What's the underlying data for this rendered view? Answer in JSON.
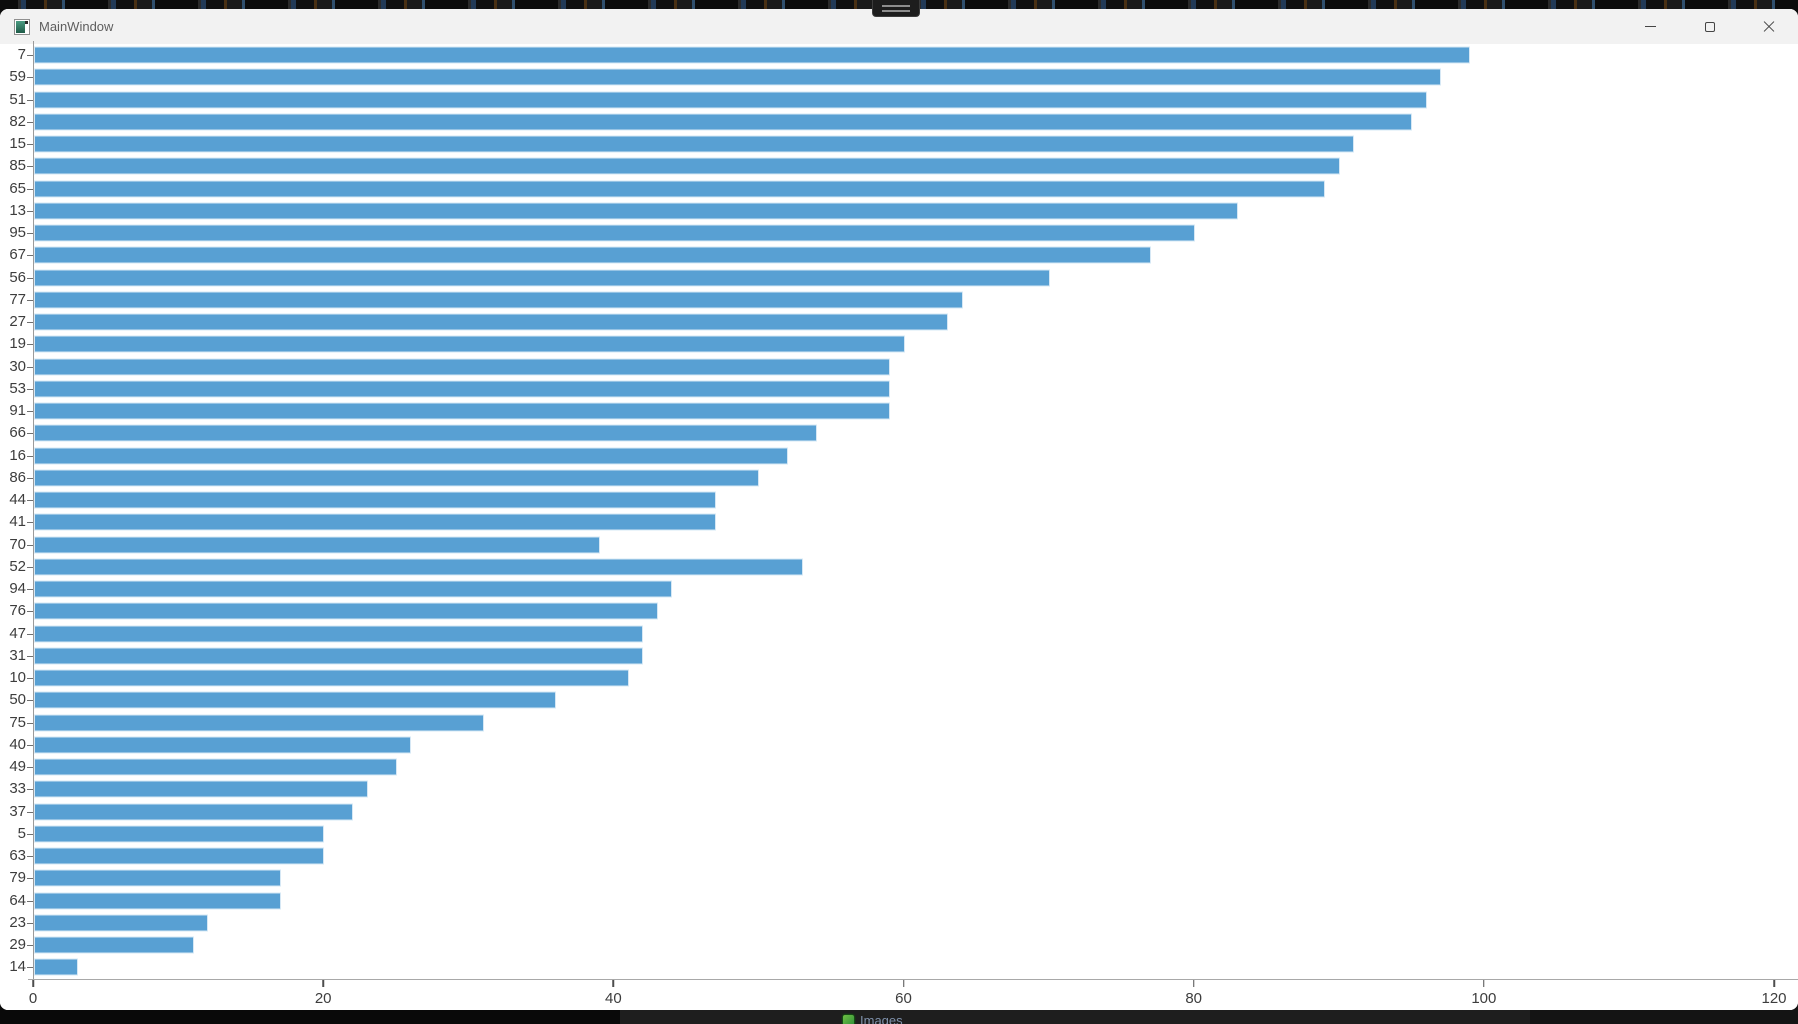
{
  "window": {
    "title": "MainWindow",
    "controls": {
      "minimize": "minimize",
      "maximize": "maximize",
      "close": "close"
    }
  },
  "taskbar_behind": {
    "images_label": "Images"
  },
  "colors": {
    "bar_fill": "#58a0d3",
    "bar_border": "#d6e8f5",
    "axis_line": "#9b9b9b",
    "tick_text": "#3d3d3d",
    "titlebar_bg": "#f2f2f2",
    "window_bg": "#ffffff"
  },
  "chart_data": {
    "type": "bar",
    "orientation": "horizontal",
    "title": "",
    "xlabel": "",
    "ylabel": "",
    "grid": false,
    "legend": false,
    "xlim": [
      0,
      120
    ],
    "xticks": [
      0,
      20,
      40,
      60,
      80,
      100,
      120
    ],
    "categories": [
      "7",
      "59",
      "51",
      "82",
      "15",
      "85",
      "65",
      "13",
      "95",
      "67",
      "56",
      "77",
      "27",
      "19",
      "30",
      "53",
      "91",
      "66",
      "16",
      "86",
      "44",
      "41",
      "70",
      "52",
      "94",
      "76",
      "47",
      "31",
      "10",
      "50",
      "75",
      "40",
      "49",
      "33",
      "37",
      "5",
      "63",
      "79",
      "64",
      "23",
      "29",
      "14"
    ],
    "values": [
      99,
      97,
      96,
      95,
      91,
      90,
      89,
      83,
      80,
      77,
      70,
      64,
      63,
      60,
      59,
      59,
      59,
      54,
      52,
      50,
      47,
      47,
      39,
      53,
      44,
      43,
      42,
      42,
      41,
      36,
      31,
      26,
      25,
      23,
      22,
      20,
      20,
      17,
      17,
      12,
      11,
      3
    ]
  }
}
